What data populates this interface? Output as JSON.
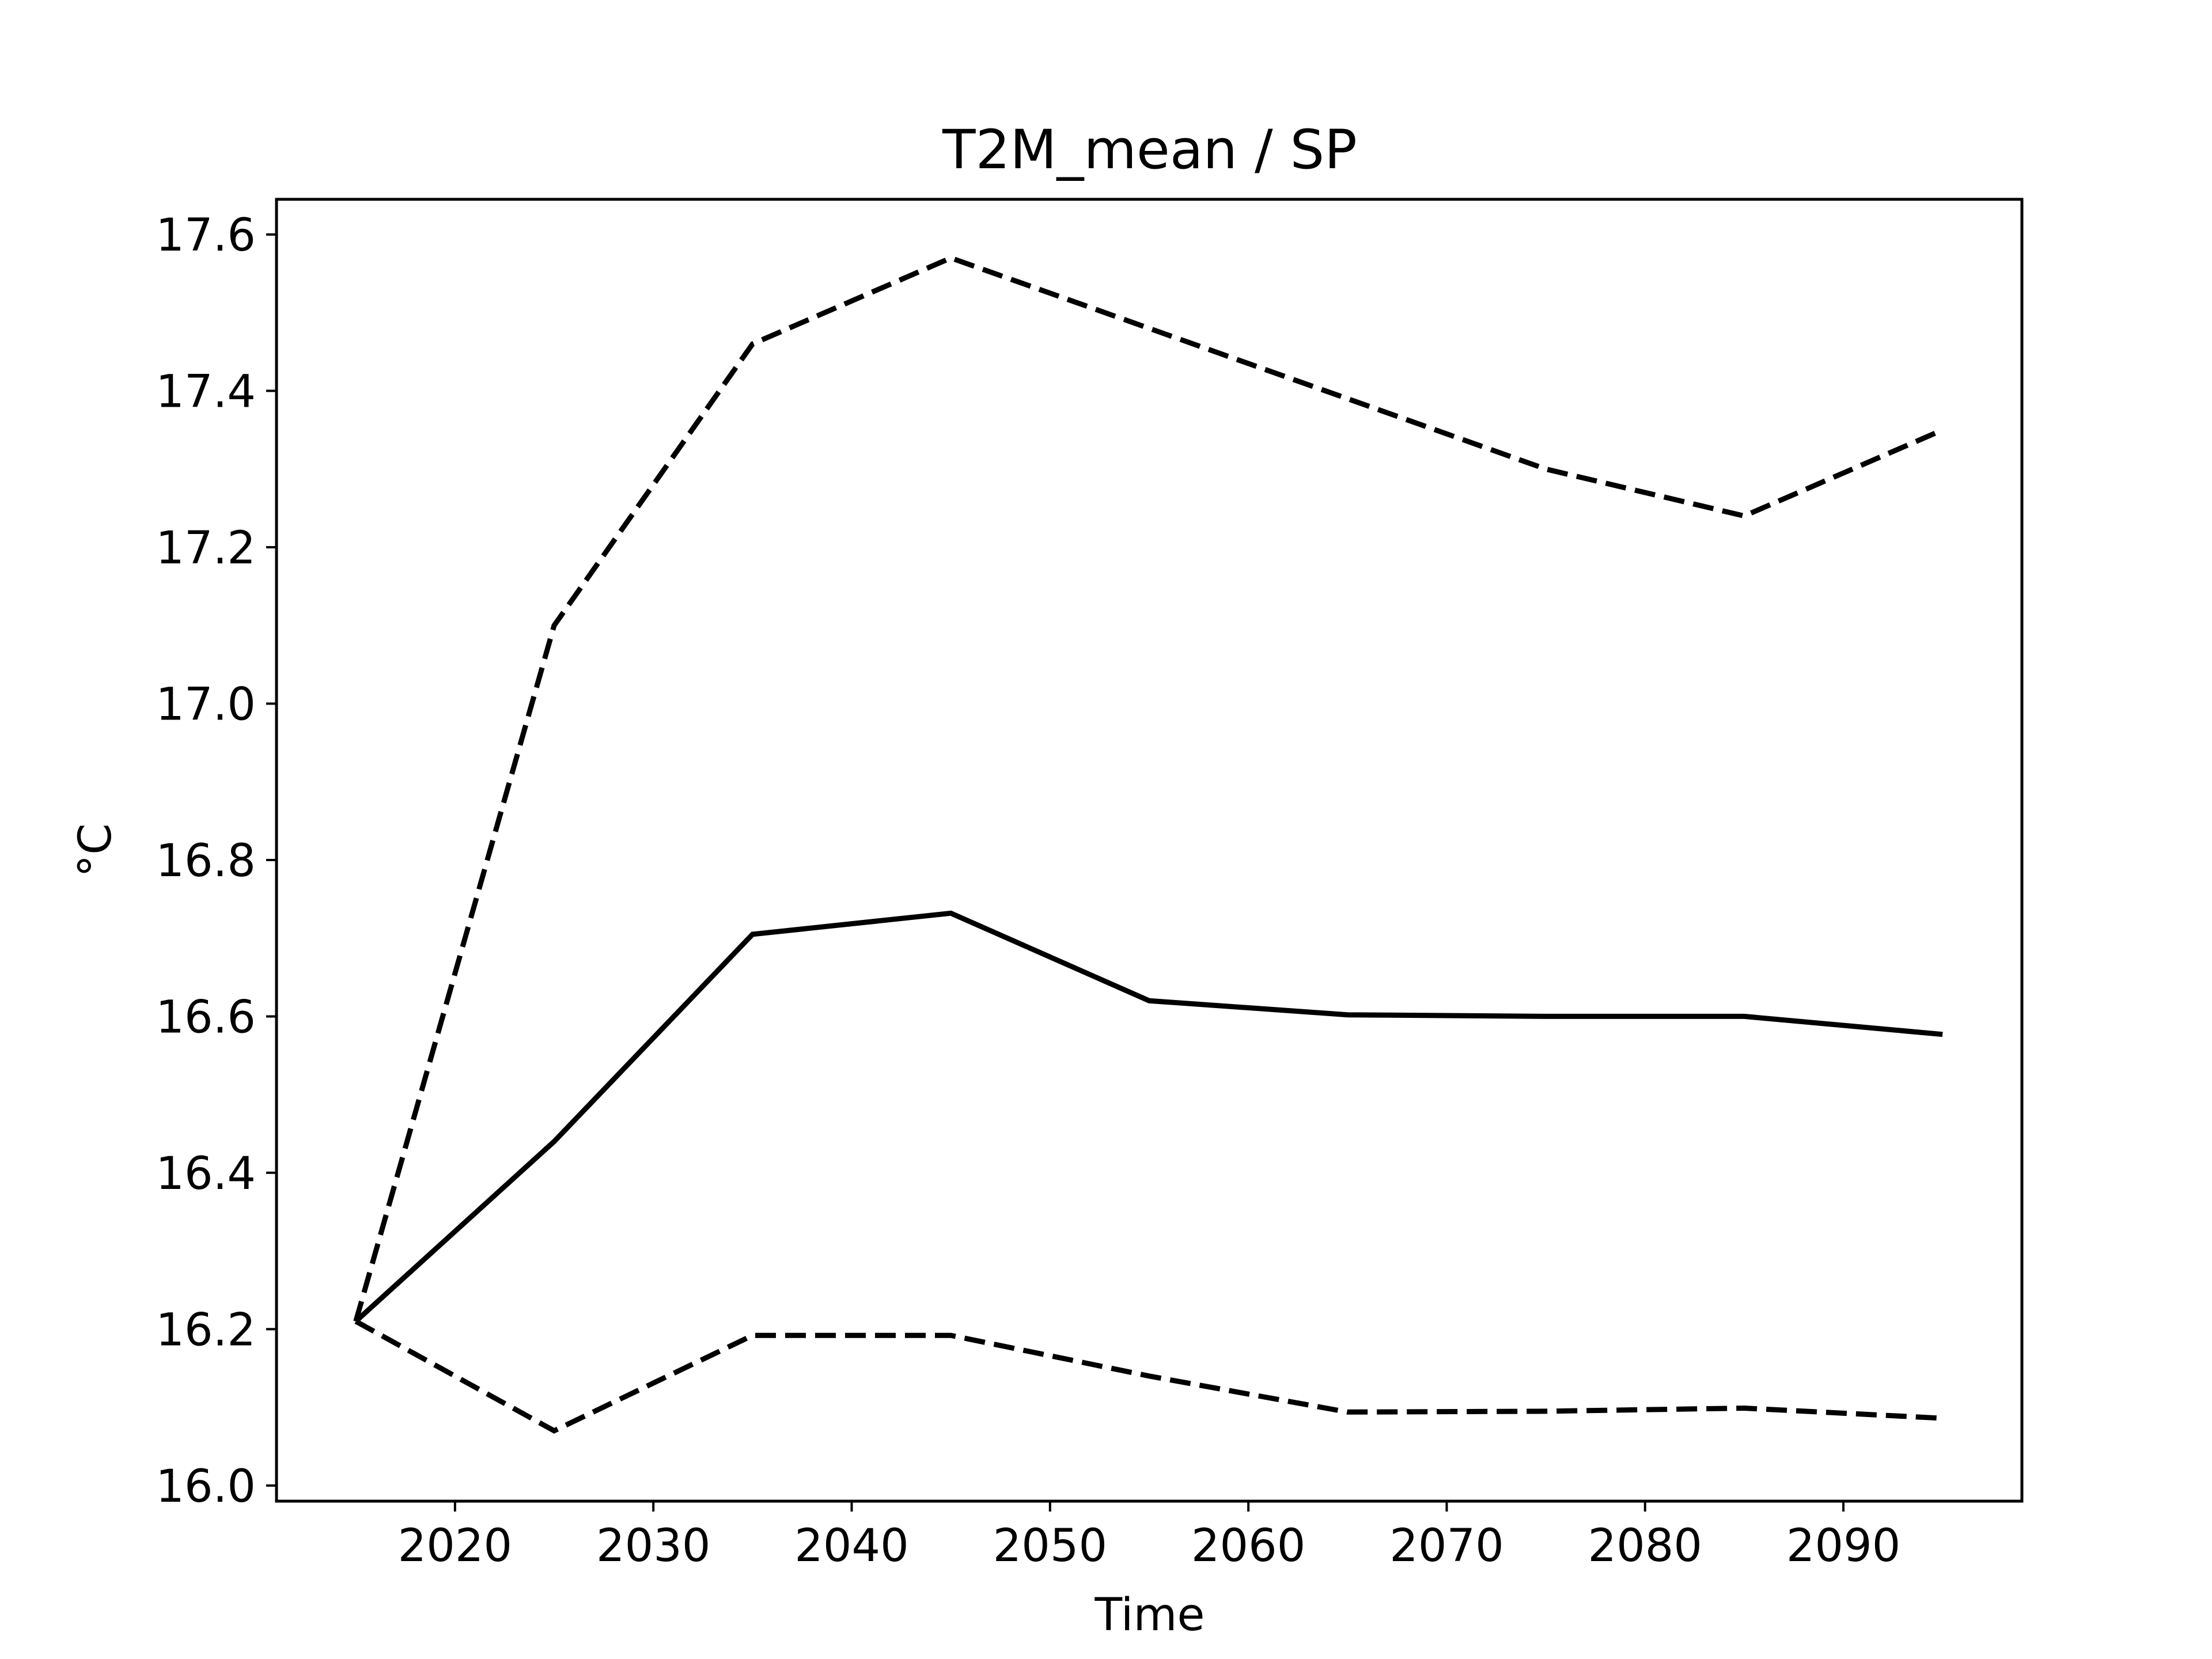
{
  "chart_data": {
    "type": "line",
    "title": "T2M_mean / SP",
    "xlabel": "Time",
    "ylabel": "°C",
    "x": [
      2015,
      2025,
      2035,
      2045,
      2055,
      2065,
      2075,
      2085,
      2095
    ],
    "xlim": [
      2011,
      2099
    ],
    "ylim": [
      15.98,
      17.645
    ],
    "xticks": [
      2020,
      2030,
      2040,
      2050,
      2060,
      2070,
      2080,
      2090
    ],
    "yticks": [
      16.0,
      16.2,
      16.4,
      16.6,
      16.8,
      17.0,
      17.2,
      17.4,
      17.6
    ],
    "grid": false,
    "series": [
      {
        "values": [
          16.21,
          16.44,
          16.705,
          16.732,
          16.62,
          16.602,
          16.6,
          16.6,
          16.577
        ],
        "style": "solid",
        "color": "#000000"
      },
      {
        "values": [
          16.21,
          17.1,
          17.46,
          17.57,
          17.48,
          17.39,
          17.3,
          17.24,
          17.35
        ],
        "style": "dashed",
        "color": "#000000"
      },
      {
        "values": [
          16.21,
          16.07,
          16.192,
          16.192,
          16.14,
          16.094,
          16.095,
          16.099,
          16.086
        ],
        "style": "dashed",
        "color": "#000000"
      }
    ]
  }
}
